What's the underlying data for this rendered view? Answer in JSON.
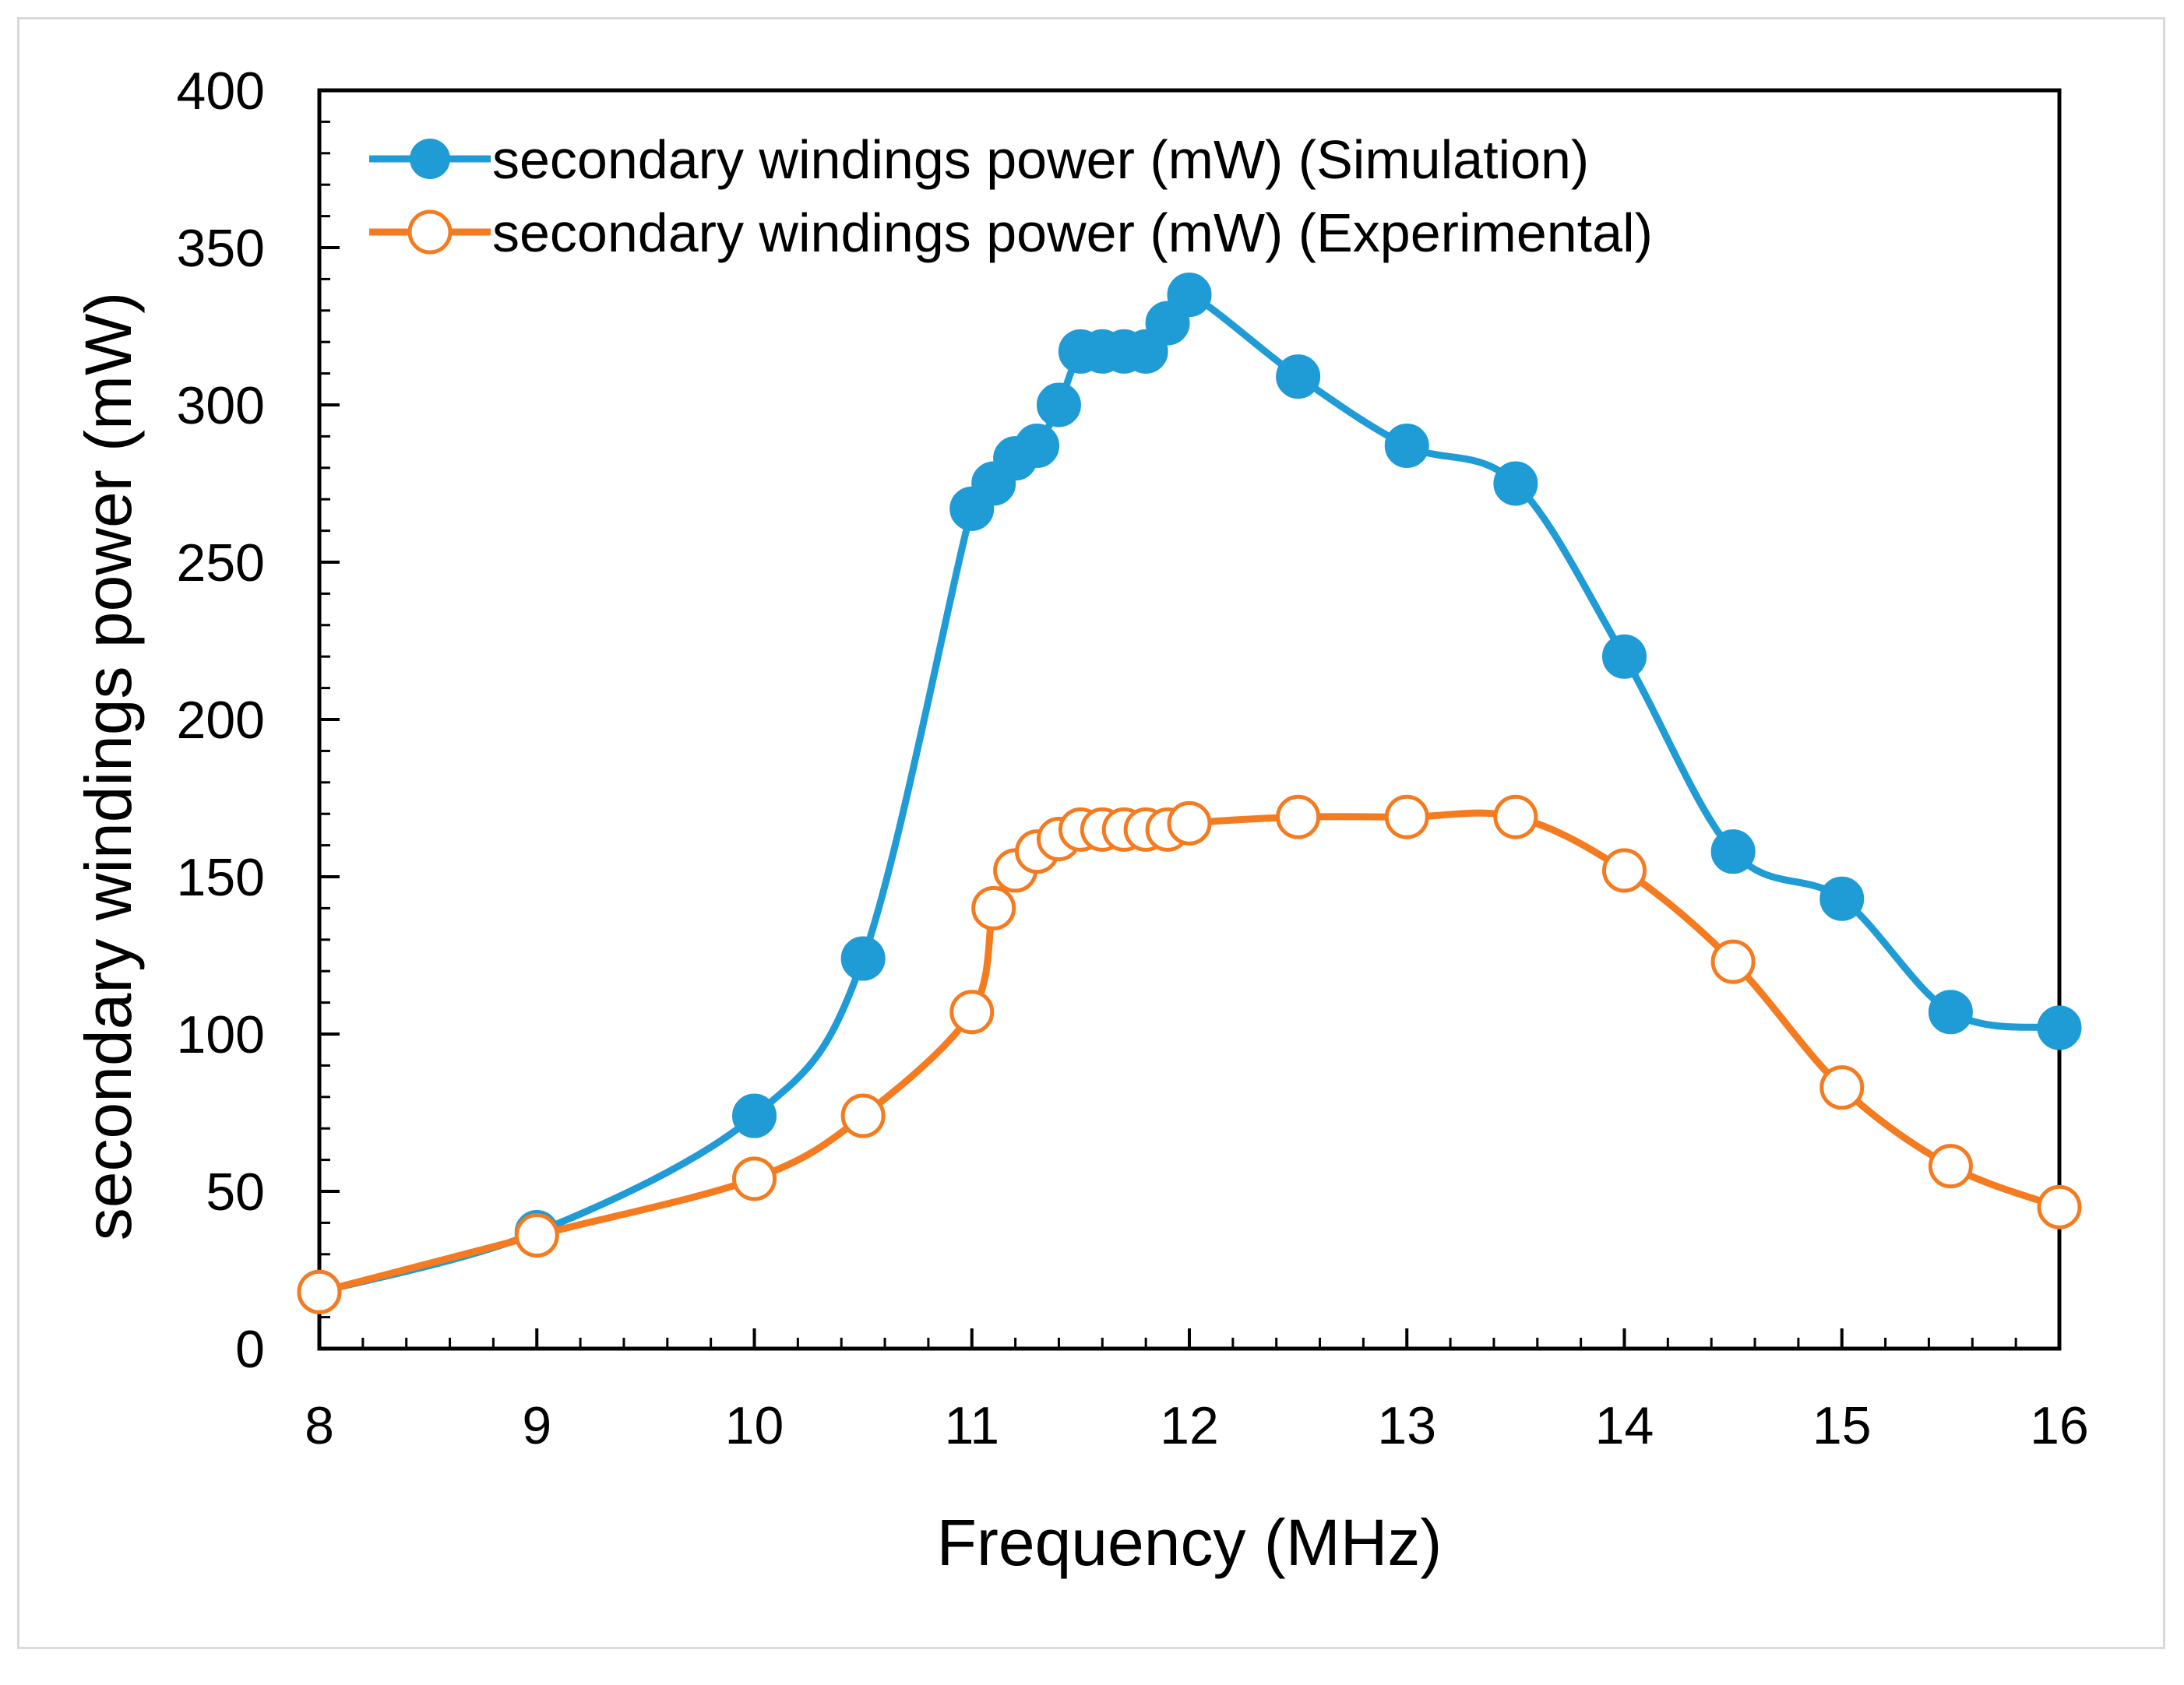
{
  "chart_data": {
    "type": "line",
    "title": "",
    "xlabel": "Frequency (MHz)",
    "ylabel": "secondary windings power (mW)",
    "xlim": [
      8,
      16
    ],
    "ylim": [
      0,
      400
    ],
    "xticks": [
      "8",
      "9",
      "10",
      "11",
      "12",
      "13",
      "14",
      "15",
      "16"
    ],
    "yticks": [
      "0",
      "50",
      "100",
      "150",
      "200",
      "250",
      "300",
      "350",
      "400"
    ],
    "grid": false,
    "legend_position": "top-left",
    "series": [
      {
        "name": "secondary windings power (mW) (Simulation)",
        "color": "#1f9bd6",
        "marker": "filled-circle",
        "x": [
          8,
          9,
          10,
          10.5,
          11,
          11.1,
          11.2,
          11.3,
          11.4,
          11.5,
          11.6,
          11.7,
          11.8,
          11.9,
          12,
          12.5,
          13,
          13.5,
          14,
          14.5,
          15,
          15.5,
          16
        ],
        "y": [
          18,
          37,
          74,
          124,
          267,
          275,
          283,
          287,
          300,
          317,
          317,
          317,
          317,
          326,
          335,
          309,
          287,
          275,
          220,
          158,
          143,
          107,
          102
        ]
      },
      {
        "name": "secondary windings power (mW) (Experimental)",
        "color": "#f47b20",
        "marker": "open-circle",
        "x": [
          8,
          9,
          10,
          10.5,
          11,
          11.1,
          11.2,
          11.3,
          11.4,
          11.5,
          11.6,
          11.7,
          11.8,
          11.9,
          12,
          12.5,
          13,
          13.5,
          14,
          14.5,
          15,
          15.5,
          16
        ],
        "y": [
          18,
          36,
          54,
          74,
          107,
          140,
          152,
          158,
          162,
          165,
          165,
          165,
          165,
          165,
          167,
          169,
          169,
          169,
          152,
          123,
          83,
          58,
          45
        ]
      }
    ]
  }
}
